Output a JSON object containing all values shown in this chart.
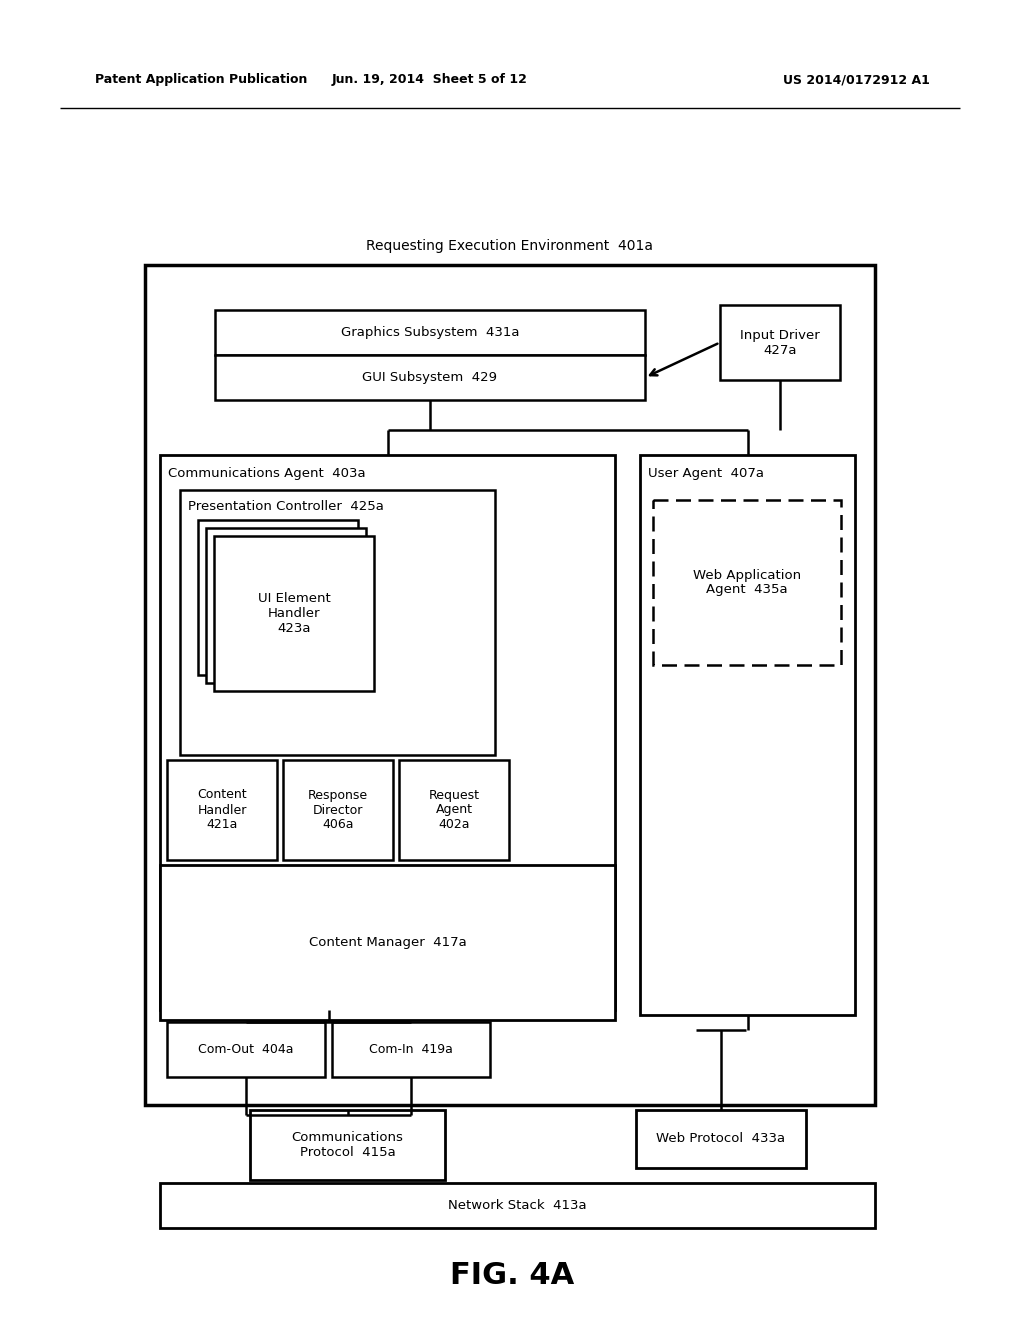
{
  "bg_color": "#ffffff",
  "header_left": "Patent Application Publication",
  "header_center": "Jun. 19, 2014  Sheet 5 of 12",
  "header_right": "US 2014/0172912 A1",
  "figure_label": "FIG. 4A"
}
